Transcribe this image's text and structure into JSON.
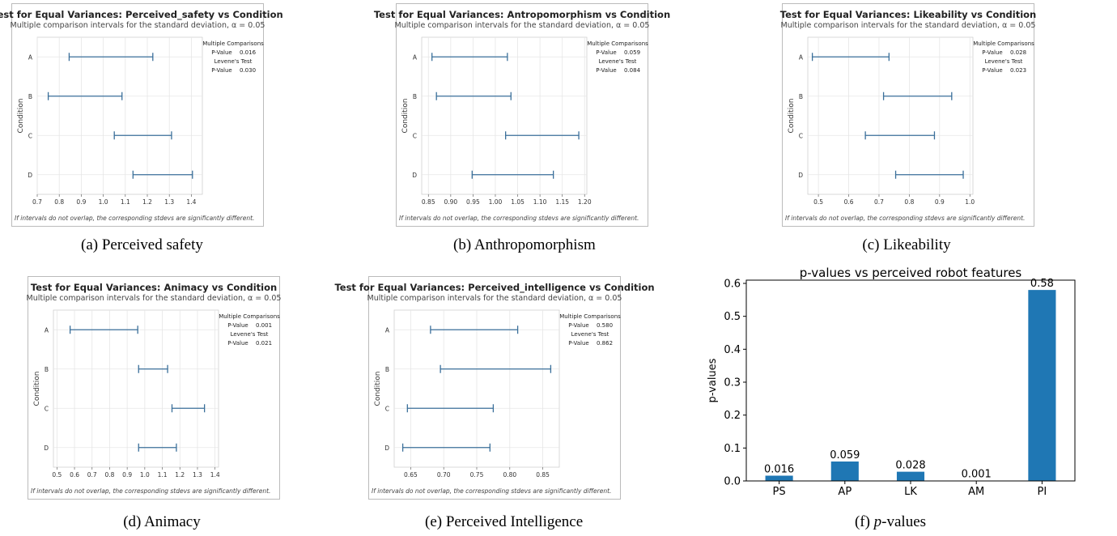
{
  "chart_data": [
    {
      "type": "interval",
      "title": "Test for Equal Variances: Perceived_safety vs Condition",
      "subtitle": "Multiple comparison intervals for the standard deviation, α = 0.05",
      "ylabel": "Condition",
      "categories": [
        "A",
        "B",
        "C",
        "D"
      ],
      "intervals": [
        [
          0.845,
          1.225
        ],
        [
          0.75,
          1.085
        ],
        [
          1.05,
          1.31
        ],
        [
          1.135,
          1.405
        ]
      ],
      "xlim": [
        0.7,
        1.45
      ],
      "xticks": [
        "0.7",
        "0.8",
        "0.9",
        "1.0",
        "1.1",
        "1.2",
        "1.3",
        "1.4"
      ],
      "xtick_values": [
        0.7,
        0.8,
        0.9,
        1.0,
        1.1,
        1.2,
        1.3,
        1.4
      ],
      "info": {
        "mc_heading": "Multiple Comparisons",
        "mc_label": "P-Value",
        "mc_value": "0.016",
        "lev_heading": "Levene's Test",
        "lev_label": "P-Value",
        "lev_value": "0.030"
      },
      "footnote": "If intervals do not overlap, the corresponding stdevs are significantly different.",
      "caption": "(a) Perceived safety"
    },
    {
      "type": "interval",
      "title": "Test for Equal Variances: Antropomorphism vs Condition",
      "subtitle": "Multiple comparison intervals for the standard deviation, α = 0.05",
      "ylabel": "Condition",
      "categories": [
        "A",
        "B",
        "C",
        "D"
      ],
      "intervals": [
        [
          0.858,
          1.027
        ],
        [
          0.868,
          1.035
        ],
        [
          1.023,
          1.187
        ],
        [
          0.948,
          1.13
        ]
      ],
      "xlim": [
        0.835,
        1.205
      ],
      "xticks": [
        "0.85",
        "0.90",
        "0.95",
        "1.00",
        "1.05",
        "1.10",
        "1.15",
        "1.20"
      ],
      "xtick_values": [
        0.85,
        0.9,
        0.95,
        1.0,
        1.05,
        1.1,
        1.15,
        1.2
      ],
      "info": {
        "mc_heading": "Multiple Comparisons",
        "mc_label": "P-Value",
        "mc_value": "0.059",
        "lev_heading": "Levene's Test",
        "lev_label": "P-Value",
        "lev_value": "0.084"
      },
      "footnote": "If intervals do not overlap, the corresponding stdevs are significantly different.",
      "caption": "(b) Anthropomorphism"
    },
    {
      "type": "interval",
      "title": "Test for Equal Variances: Likeability vs Condition",
      "subtitle": "Multiple comparison intervals for the standard deviation, α = 0.05",
      "ylabel": "Condition",
      "categories": [
        "A",
        "B",
        "C",
        "D"
      ],
      "intervals": [
        [
          0.48,
          0.733
        ],
        [
          0.715,
          0.94
        ],
        [
          0.655,
          0.883
        ],
        [
          0.755,
          0.978
        ]
      ],
      "xlim": [
        0.465,
        1.01
      ],
      "xticks": [
        "0.5",
        "0.6",
        "0.7",
        "0.8",
        "0.9",
        "1.0"
      ],
      "xtick_values": [
        0.5,
        0.6,
        0.7,
        0.8,
        0.9,
        1.0
      ],
      "info": {
        "mc_heading": "Multiple Comparisons",
        "mc_label": "P-Value",
        "mc_value": "0.028",
        "lev_heading": "Levene's Test",
        "lev_label": "P-Value",
        "lev_value": "0.023"
      },
      "footnote": "If intervals do not overlap, the corresponding stdevs are significantly different.",
      "caption": "(c) Likeability"
    },
    {
      "type": "interval",
      "title": "Test for Equal Variances: Animacy vs Condition",
      "subtitle": "Multiple comparison intervals for the standard deviation, α = 0.05",
      "ylabel": "Condition",
      "categories": [
        "A",
        "B",
        "C",
        "D"
      ],
      "intervals": [
        [
          0.575,
          0.96
        ],
        [
          0.965,
          1.13
        ],
        [
          1.155,
          1.34
        ],
        [
          0.965,
          1.18
        ]
      ],
      "xlim": [
        0.48,
        1.42
      ],
      "xticks": [
        "0.5",
        "0.6",
        "0.7",
        "0.8",
        "0.9",
        "1.0",
        "1.1",
        "1.2",
        "1.3",
        "1.4"
      ],
      "xtick_values": [
        0.5,
        0.6,
        0.7,
        0.8,
        0.9,
        1.0,
        1.1,
        1.2,
        1.3,
        1.4
      ],
      "info": {
        "mc_heading": "Multiple Comparisons",
        "mc_label": "P-Value",
        "mc_value": "0.001",
        "lev_heading": "Levene's Test",
        "lev_label": "P-Value",
        "lev_value": "0.021"
      },
      "footnote": "If intervals do not overlap, the corresponding stdevs are significantly different.",
      "caption": "(d) Animacy"
    },
    {
      "type": "interval",
      "title": "Test for Equal Variances: Perceived_intelligence vs Condition",
      "subtitle": "Multiple comparison intervals for the standard deviation, α = 0.05",
      "ylabel": "Condition",
      "categories": [
        "A",
        "B",
        "C",
        "D"
      ],
      "intervals": [
        [
          0.68,
          0.812
        ],
        [
          0.695,
          0.862
        ],
        [
          0.645,
          0.775
        ],
        [
          0.638,
          0.77
        ]
      ],
      "xlim": [
        0.625,
        0.875
      ],
      "xticks": [
        "0.65",
        "0.70",
        "0.75",
        "0.80",
        "0.85"
      ],
      "xtick_values": [
        0.65,
        0.7,
        0.75,
        0.8,
        0.85
      ],
      "info": {
        "mc_heading": "Multiple Comparisons",
        "mc_label": "P-Value",
        "mc_value": "0.580",
        "lev_heading": "Levene's Test",
        "lev_label": "P-Value",
        "lev_value": "0.862"
      },
      "footnote": "If intervals do not overlap, the corresponding stdevs are significantly different.",
      "caption": "(e) Perceived Intelligence"
    },
    {
      "type": "bar",
      "title": "p-values vs perceived robot features",
      "ylabel": "p-values",
      "categories": [
        "PS",
        "AP",
        "LK",
        "AM",
        "PI"
      ],
      "values": [
        0.016,
        0.059,
        0.028,
        0.001,
        0.58
      ],
      "value_labels": [
        "0.016",
        "0.059",
        "0.028",
        "0.001",
        "0.58"
      ],
      "ylim": [
        0,
        0.6
      ],
      "yticks": [
        "0.0",
        "0.1",
        "0.2",
        "0.3",
        "0.4",
        "0.5",
        "0.6"
      ],
      "ytick_values": [
        0,
        0.1,
        0.2,
        0.3,
        0.4,
        0.5,
        0.6
      ],
      "bar_color": "#1f77b4",
      "caption_prefix": "(f) ",
      "caption_italic": "p",
      "caption_suffix": "-values"
    }
  ],
  "colors": {
    "interval": "#3a6f9a",
    "grid": "#e6e6e6",
    "frame": "#bbbbbb"
  }
}
